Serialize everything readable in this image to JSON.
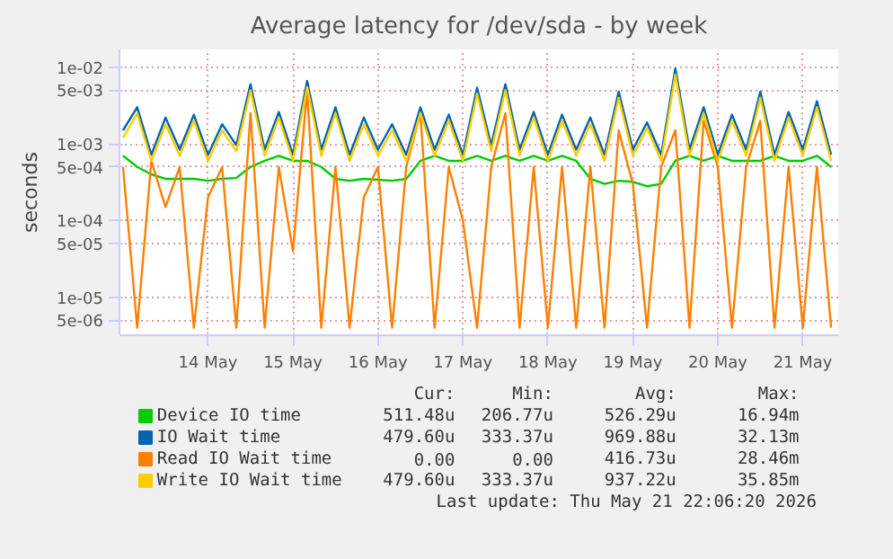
{
  "chart_data": {
    "type": "line",
    "title": "Average latency for /dev/sda - by week",
    "ylabel": "seconds",
    "log": "y",
    "grid": true,
    "legend": "bottom",
    "line_style": "solid",
    "marker": "none",
    "xlim": [
      "2026-05-13T11:00",
      "2026-05-21T22:00"
    ],
    "xticks": [
      {
        "value": "2026-05-14T12:00",
        "label": "14 May"
      },
      {
        "value": "2026-05-15T12:00",
        "label": "15 May"
      },
      {
        "value": "2026-05-16T12:00",
        "label": "16 May"
      },
      {
        "value": "2026-05-17T12:00",
        "label": "17 May"
      },
      {
        "value": "2026-05-18T12:00",
        "label": "18 May"
      },
      {
        "value": "2026-05-19T12:00",
        "label": "19 May"
      },
      {
        "value": "2026-05-20T12:00",
        "label": "20 May"
      },
      {
        "value": "2026-05-21T12:00",
        "label": "21 May"
      }
    ],
    "ylim": [
      3.2e-06,
      0.017
    ],
    "yticks": [
      {
        "value": 5e-06,
        "label": "5e-06"
      },
      {
        "value": 1e-05,
        "label": "1e-05"
      },
      {
        "value": 5e-05,
        "label": "5e-05"
      },
      {
        "value": 0.0001,
        "label": "1e-04"
      },
      {
        "value": 0.0005,
        "label": "5e-04"
      },
      {
        "value": 0.001,
        "label": "1e-03"
      },
      {
        "value": 0.005,
        "label": "5e-03"
      },
      {
        "value": 0.01,
        "label": "1e-02"
      }
    ],
    "x": [
      "2026-05-13T12:00",
      "2026-05-13T16:00",
      "2026-05-13T20:00",
      "2026-05-14T00:00",
      "2026-05-14T04:00",
      "2026-05-14T08:00",
      "2026-05-14T12:00",
      "2026-05-14T16:00",
      "2026-05-14T20:00",
      "2026-05-15T00:00",
      "2026-05-15T04:00",
      "2026-05-15T08:00",
      "2026-05-15T12:00",
      "2026-05-15T16:00",
      "2026-05-15T20:00",
      "2026-05-16T00:00",
      "2026-05-16T04:00",
      "2026-05-16T08:00",
      "2026-05-16T12:00",
      "2026-05-16T16:00",
      "2026-05-16T20:00",
      "2026-05-17T00:00",
      "2026-05-17T04:00",
      "2026-05-17T08:00",
      "2026-05-17T12:00",
      "2026-05-17T16:00",
      "2026-05-17T20:00",
      "2026-05-18T00:00",
      "2026-05-18T04:00",
      "2026-05-18T08:00",
      "2026-05-18T12:00",
      "2026-05-18T16:00",
      "2026-05-18T20:00",
      "2026-05-19T00:00",
      "2026-05-19T04:00",
      "2026-05-19T08:00",
      "2026-05-19T12:00",
      "2026-05-19T16:00",
      "2026-05-19T20:00",
      "2026-05-20T00:00",
      "2026-05-20T04:00",
      "2026-05-20T08:00",
      "2026-05-20T12:00",
      "2026-05-20T16:00",
      "2026-05-20T20:00",
      "2026-05-21T00:00",
      "2026-05-21T04:00",
      "2026-05-21T08:00",
      "2026-05-21T12:00",
      "2026-05-21T16:00",
      "2026-05-21T20:00"
    ],
    "series": [
      {
        "name": "Device IO time",
        "color": "#00cc00",
        "values": [
          0.0007,
          0.0005,
          0.0004,
          0.00035,
          0.00035,
          0.00035,
          0.00033,
          0.00035,
          0.00036,
          0.0005,
          0.0006,
          0.0007,
          0.0006,
          0.0006,
          0.0005,
          0.00035,
          0.00033,
          0.00035,
          0.00034,
          0.00033,
          0.00035,
          0.0006,
          0.0007,
          0.0006,
          0.0006,
          0.0007,
          0.0006,
          0.0007,
          0.0006,
          0.0007,
          0.0006,
          0.0007,
          0.0006,
          0.00035,
          0.0003,
          0.00033,
          0.00032,
          0.00028,
          0.0003,
          0.0006,
          0.0007,
          0.0006,
          0.0007,
          0.0006,
          0.0006,
          0.0006,
          0.0007,
          0.0006,
          0.0006,
          0.0007,
          0.0005
        ]
      },
      {
        "name": "IO Wait time",
        "color": "#0066b3",
        "values": [
          0.0015,
          0.003,
          0.00072,
          0.0022,
          0.00084,
          0.0024,
          0.00072,
          0.0018,
          0.00096,
          0.006,
          0.00084,
          0.0026,
          0.00072,
          0.0066,
          0.00084,
          0.003,
          0.00072,
          0.0022,
          0.00084,
          0.0018,
          0.00072,
          0.003,
          0.00084,
          0.0024,
          0.00072,
          0.0054,
          0.00096,
          0.006,
          0.00084,
          0.0026,
          0.00072,
          0.0024,
          0.00084,
          0.0022,
          0.00072,
          0.0048,
          0.00084,
          0.0019,
          0.00072,
          0.0096,
          0.00084,
          0.003,
          0.00072,
          0.0024,
          0.00084,
          0.0048,
          0.00072,
          0.0026,
          0.00084,
          0.0036,
          0.00072
        ]
      },
      {
        "name": "Read IO Wait time",
        "color": "#ff8000",
        "values": [
          0.0005,
          4e-06,
          0.0006,
          0.00015,
          0.0005,
          4e-06,
          0.0002,
          0.0005,
          4e-06,
          0.0025,
          4e-06,
          0.0005,
          4e-05,
          0.005,
          4e-06,
          0.0005,
          4e-06,
          0.0002,
          0.0005,
          4e-06,
          0.0005,
          0.0025,
          4e-06,
          0.0005,
          0.0001,
          4e-06,
          0.0005,
          0.0025,
          4e-06,
          0.0005,
          4e-06,
          0.0005,
          4e-06,
          0.0005,
          4e-06,
          0.0015,
          0.0003,
          4e-06,
          0.0005,
          0.0015,
          4e-06,
          0.002,
          0.0005,
          4e-06,
          0.0005,
          0.002,
          4e-06,
          0.0005,
          4e-06,
          0.0005,
          4e-06
        ]
      },
      {
        "name": "Write IO Wait time",
        "color": "#ffcc00",
        "values": [
          0.0012,
          0.0025,
          0.0006,
          0.0018,
          0.0007,
          0.002,
          0.0006,
          0.0015,
          0.0008,
          0.005,
          0.0007,
          0.0022,
          0.0006,
          0.0055,
          0.0007,
          0.0025,
          0.0006,
          0.0018,
          0.0007,
          0.0015,
          0.0006,
          0.0025,
          0.0007,
          0.002,
          0.0006,
          0.0045,
          0.0008,
          0.005,
          0.0007,
          0.0022,
          0.0006,
          0.002,
          0.0007,
          0.0018,
          0.0006,
          0.004,
          0.0007,
          0.0016,
          0.0006,
          0.008,
          0.0007,
          0.0025,
          0.0006,
          0.002,
          0.0007,
          0.004,
          0.0006,
          0.0022,
          0.0007,
          0.003,
          0.0006
        ]
      }
    ],
    "annotations": [
      "Cur:",
      "Min:",
      "Avg:",
      "Max:",
      "511.48u",
      "206.77u",
      "526.29u",
      "16.94m",
      "479.60u",
      "333.37u",
      "969.88u",
      "32.13m",
      "0.00",
      "0.00",
      "416.73u",
      "28.46m",
      "479.60u",
      "333.37u",
      "937.22u",
      "35.85m",
      "Last update: Thu May 21 22:06:20 2026"
    ]
  }
}
